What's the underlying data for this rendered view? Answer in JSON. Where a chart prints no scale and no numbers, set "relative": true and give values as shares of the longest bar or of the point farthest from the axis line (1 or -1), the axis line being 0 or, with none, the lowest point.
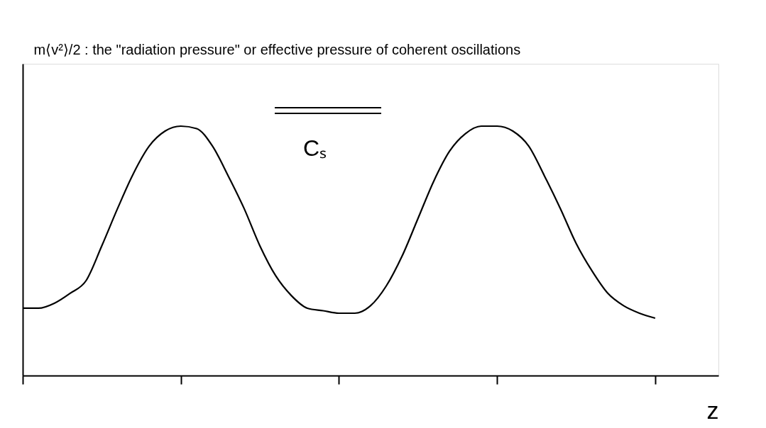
{
  "chart_data": {
    "type": "line",
    "relative": true,
    "tick_labels": false,
    "grid": false,
    "marker": "none",
    "line_style": "solid",
    "ylabel": "m⟨v²⟩/2 : the \"radiation pressure\" or effective pressure of coherent oscillations",
    "xlabel": "z",
    "annotations": [
      "Cₛ"
    ],
    "categories": [
      null,
      null,
      null,
      null,
      null,
      null,
      null,
      null,
      null,
      null,
      null,
      null,
      null,
      null,
      null,
      null,
      null,
      null,
      null,
      null,
      null,
      null,
      null,
      null,
      null,
      null,
      null,
      null,
      null,
      null,
      null,
      null,
      null,
      null,
      null,
      null,
      null,
      null,
      null,
      null,
      null
    ],
    "series": [
      {
        "color": "#000000",
        "values": [
          0.27,
          0.27,
          0.29,
          0.33,
          0.38,
          0.52,
          0.67,
          0.81,
          0.92,
          0.98,
          1.0,
          0.99,
          0.92,
          0.8,
          0.67,
          0.52,
          0.4,
          0.32,
          0.27,
          0.26,
          0.25,
          0.25,
          0.28,
          0.36,
          0.48,
          0.63,
          0.78,
          0.9,
          0.97,
          1.0,
          1.0,
          0.98,
          0.92,
          0.8,
          0.67,
          0.53,
          0.42,
          0.33,
          0.28,
          0.25,
          0.23
        ]
      }
    ]
  }
}
